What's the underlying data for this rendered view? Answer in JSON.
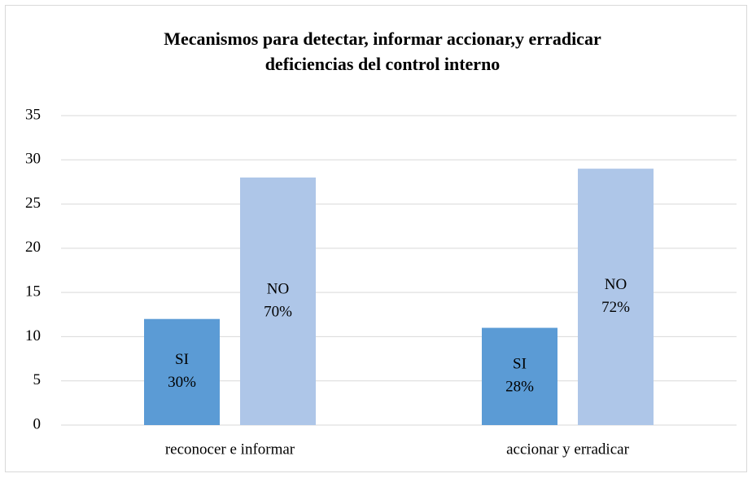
{
  "chart_data": {
    "type": "bar",
    "title": [
      "Mecanismos para detectar, informar accionar,y erradicar",
      "deficiencias del control interno"
    ],
    "categories": [
      "reconocer e informar",
      "accionar y erradicar"
    ],
    "series": [
      {
        "name": "SI",
        "color": "#5b9bd5",
        "values": [
          12,
          11
        ],
        "data_labels": [
          "30%",
          "28%"
        ]
      },
      {
        "name": "NO",
        "color": "#aec6e8",
        "values": [
          28,
          29
        ],
        "data_labels": [
          "70%",
          "72%"
        ]
      }
    ],
    "ylim": [
      0,
      35
    ],
    "yticks": [
      0,
      5,
      10,
      15,
      20,
      25,
      30,
      35
    ],
    "grid": true
  }
}
